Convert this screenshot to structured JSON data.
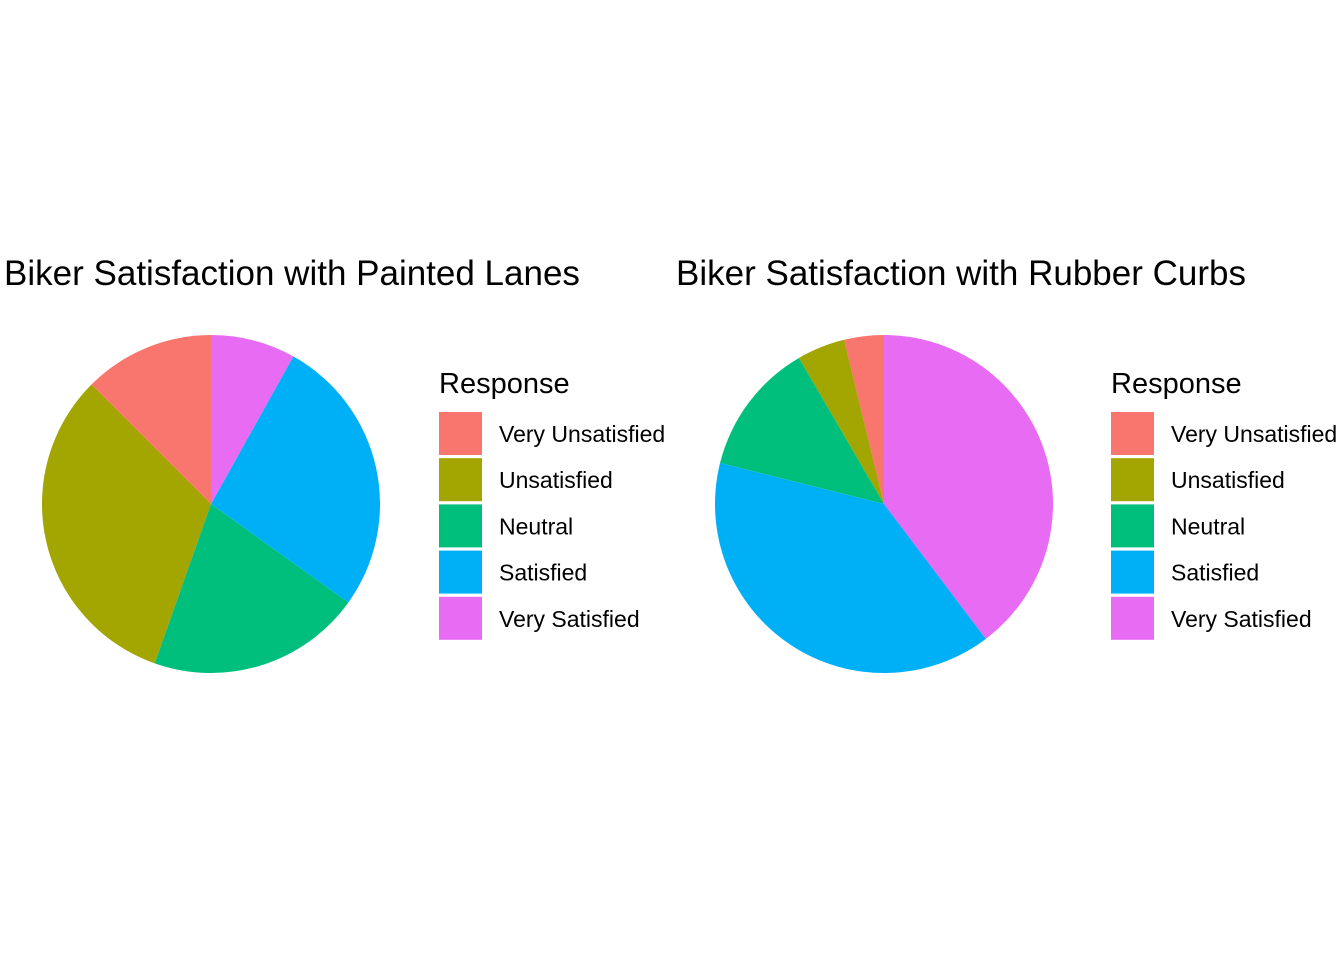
{
  "legend_title": "Response",
  "categories": [
    "Very Unsatisfied",
    "Unsatisfied",
    "Neutral",
    "Satisfied",
    "Very Satisfied"
  ],
  "colors": [
    "#F8766D",
    "#A3A500",
    "#00BF7D",
    "#00B0F6",
    "#E76BF3"
  ],
  "chart_data": [
    {
      "type": "pie",
      "title": "Biker Satisfaction with Painted Lanes",
      "legend_placement": "right",
      "categories": [
        "Very Unsatisfied",
        "Unsatisfied",
        "Neutral",
        "Satisfied",
        "Very Satisfied"
      ],
      "values": [
        12.5,
        32.1,
        20.5,
        26.8,
        8.1
      ]
    },
    {
      "type": "pie",
      "title": "Biker Satisfaction with Rubber Curbs",
      "legend_placement": "right",
      "categories": [
        "Very Unsatisfied",
        "Unsatisfied",
        "Neutral",
        "Satisfied",
        "Very Satisfied"
      ],
      "values": [
        3.8,
        4.6,
        12.7,
        39.2,
        39.7
      ]
    }
  ]
}
